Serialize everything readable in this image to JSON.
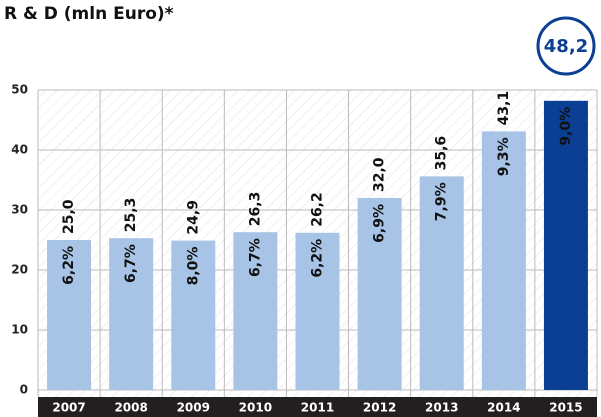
{
  "chart_data": {
    "type": "bar",
    "title": "R & D (mln Euro)*",
    "categories": [
      "2007",
      "2008",
      "2009",
      "2010",
      "2011",
      "2012",
      "2013",
      "2014",
      "2015"
    ],
    "values": [
      25.0,
      25.3,
      24.9,
      26.3,
      26.2,
      32.0,
      35.6,
      43.1,
      48.2
    ],
    "value_labels": [
      "25,0",
      "25,3",
      "24,9",
      "26,3",
      "26,2",
      "32,0",
      "35,6",
      "43,1",
      "48,2"
    ],
    "bar_texts": [
      "6,2%",
      "6,7%",
      "8,0%",
      "6,7%",
      "6,2%",
      "6,9%",
      "7,9%",
      "9,3%",
      "9,0%"
    ],
    "color": "#a7c3e6",
    "highlight_color": "#0b3f94",
    "ylim": [
      0,
      50
    ],
    "yticks": [
      0,
      10,
      20,
      30,
      40,
      50
    ],
    "grid": true
  }
}
